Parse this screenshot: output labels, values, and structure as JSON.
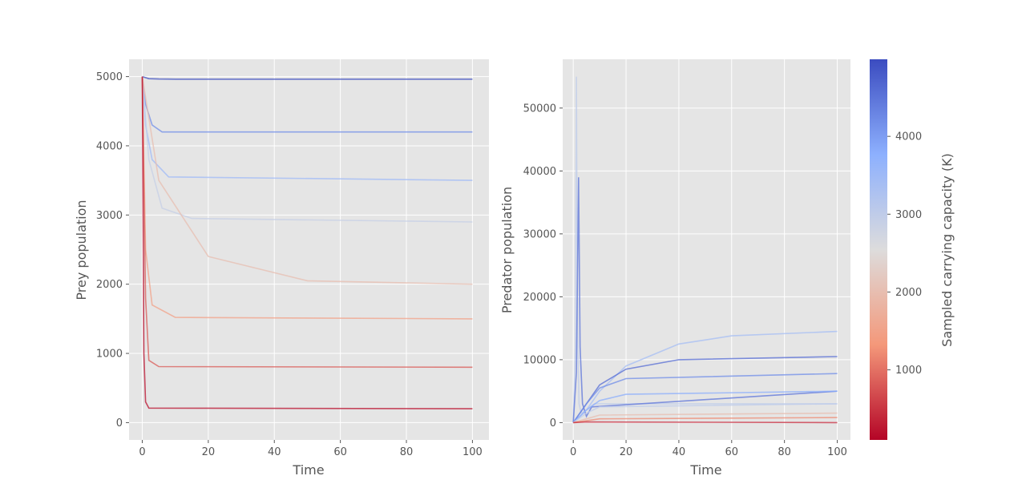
{
  "colors": {
    "background": "#e5e5e5",
    "grid": "#ffffff",
    "text": "#555555",
    "colormap": "coolwarm_r",
    "colormap_stops": [
      "#b40426",
      "#f4987a",
      "#dddcdc",
      "#8db0fe",
      "#3b4cc0"
    ]
  },
  "chart_data": [
    {
      "type": "line",
      "panel": "left",
      "xlabel": "Time",
      "ylabel": "Prey population",
      "xlim": [
        -4,
        105
      ],
      "ylim": [
        -250,
        5250
      ],
      "xticks": [
        0,
        20,
        40,
        60,
        80,
        100
      ],
      "xtick_labels": [
        "0",
        "20",
        "40",
        "60",
        "80",
        "100"
      ],
      "yticks": [
        0,
        1000,
        2000,
        3000,
        4000,
        5000
      ],
      "ytick_labels": [
        "0",
        "1000",
        "2000",
        "3000",
        "4000",
        "5000"
      ],
      "grid": true,
      "series_description": "Approximately 500 trajectories from t=0 to t=100, one per sampled carrying capacity K (100–5000); each starts near 5000 and settles to a steady level colored by K",
      "representative_series": [
        {
          "K": 4950,
          "x": [
            0,
            2,
            5,
            10,
            100
          ],
          "y": [
            5000,
            4970,
            4965,
            4963,
            4963
          ]
        },
        {
          "K": 4200,
          "x": [
            0,
            1,
            3,
            6,
            100
          ],
          "y": [
            5000,
            4600,
            4300,
            4200,
            4200
          ]
        },
        {
          "K": 3500,
          "x": [
            0,
            1,
            3,
            8,
            100
          ],
          "y": [
            5000,
            4300,
            3800,
            3550,
            3500
          ]
        },
        {
          "K": 2900,
          "x": [
            0,
            2,
            6,
            15,
            100
          ],
          "y": [
            5000,
            3800,
            3100,
            2950,
            2900
          ]
        },
        {
          "K": 2000,
          "x": [
            0,
            5,
            20,
            50,
            100
          ],
          "y": [
            5000,
            3500,
            2400,
            2050,
            2000
          ]
        },
        {
          "K": 1500,
          "x": [
            0,
            1,
            3,
            10,
            100
          ],
          "y": [
            5000,
            2500,
            1700,
            1520,
            1500
          ]
        },
        {
          "K": 800,
          "x": [
            0,
            1,
            2,
            5,
            100
          ],
          "y": [
            5000,
            1800,
            900,
            810,
            800
          ]
        },
        {
          "K": 200,
          "x": [
            0,
            0.5,
            1,
            2,
            100
          ],
          "y": [
            5000,
            1000,
            300,
            210,
            200
          ]
        }
      ]
    },
    {
      "type": "line",
      "panel": "right",
      "xlabel": "Time",
      "ylabel": "Predator population",
      "xlim": [
        -4,
        105
      ],
      "ylim": [
        -2750,
        57750
      ],
      "xticks": [
        0,
        20,
        40,
        60,
        80,
        100
      ],
      "xtick_labels": [
        "0",
        "20",
        "40",
        "60",
        "80",
        "100"
      ],
      "yticks": [
        0,
        10000,
        20000,
        30000,
        40000,
        50000
      ],
      "ytick_labels": [
        "0",
        "10000",
        "20000",
        "30000",
        "40000",
        "50000"
      ],
      "grid": true,
      "series_description": "Predator trajectories for the same samples; early spikes (peak about 55000 near t=1) then settling to plateaus up to about 14500",
      "representative_series": [
        {
          "K": 3000,
          "x": [
            0,
            0.8,
            1.2,
            1.6,
            2.2,
            3,
            5,
            8,
            100
          ],
          "y": [
            0,
            12000,
            55000,
            15000,
            3000,
            1500,
            2000,
            3000,
            3000
          ]
        },
        {
          "K": 4500,
          "x": [
            0,
            1.2,
            2,
            2.6,
            3.5,
            5,
            7,
            100
          ],
          "y": [
            0,
            8000,
            39000,
            12000,
            3000,
            1000,
            2500,
            5000
          ]
        },
        {
          "K": 3400,
          "x": [
            0,
            5,
            10,
            20,
            40,
            60,
            100
          ],
          "y": [
            0,
            2000,
            5000,
            9000,
            12500,
            13800,
            14500
          ]
        },
        {
          "K": 4600,
          "x": [
            0,
            5,
            10,
            20,
            40,
            100
          ],
          "y": [
            0,
            3000,
            6000,
            8500,
            10000,
            10500
          ]
        },
        {
          "K": 4200,
          "x": [
            0,
            5,
            10,
            20,
            100
          ],
          "y": [
            0,
            3000,
            5500,
            7000,
            7800
          ]
        },
        {
          "K": 3800,
          "x": [
            0,
            5,
            10,
            20,
            100
          ],
          "y": [
            0,
            2000,
            3500,
            4500,
            5000
          ]
        },
        {
          "K": 3000,
          "x": [
            0,
            5,
            10,
            100
          ],
          "y": [
            0,
            1500,
            2500,
            3000
          ]
        },
        {
          "K": 2000,
          "x": [
            0,
            5,
            10,
            100
          ],
          "y": [
            0,
            600,
            1200,
            1500
          ]
        },
        {
          "K": 1200,
          "x": [
            0,
            5,
            10,
            100
          ],
          "y": [
            0,
            300,
            600,
            800
          ]
        },
        {
          "K": 400,
          "x": [
            0,
            5,
            100
          ],
          "y": [
            0,
            100,
            0
          ]
        }
      ]
    }
  ],
  "colorbar": {
    "label": "Sampled carrying capacity (K)",
    "range": [
      100,
      4990
    ],
    "ticks": [
      1000,
      2000,
      3000,
      4000
    ],
    "tick_labels": [
      "1000",
      "2000",
      "3000",
      "4000"
    ]
  }
}
